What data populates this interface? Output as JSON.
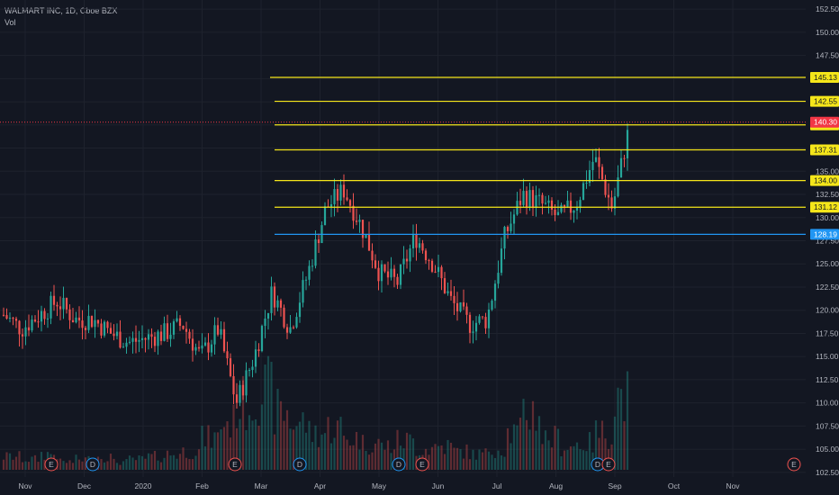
{
  "header": {
    "title": "WALMART INC, 1D, Cboe BZX",
    "volume_label": "Vol"
  },
  "colors": {
    "background": "#131722",
    "grid": "#1e222d",
    "up": "#26a69a",
    "down": "#ef5350",
    "level": "#f5e61a",
    "support": "#2196f3",
    "last_price": "#f23645"
  },
  "chart_data": {
    "type": "candlestick",
    "title": "WALMART INC, 1D, Cboe BZX",
    "ylim": [
      102,
      153
    ],
    "y_ticks": [
      102.5,
      105.0,
      107.5,
      110.0,
      112.5,
      115.0,
      117.5,
      120.0,
      122.5,
      125.0,
      127.5,
      130.0,
      132.5,
      135.0,
      137.5,
      140.0,
      142.5,
      145.0,
      147.5,
      150.0,
      152.5
    ],
    "x_ticks": [
      "Nov",
      "Dec",
      "2020",
      "Feb",
      "Mar",
      "Apr",
      "May",
      "Jun",
      "Jul",
      "Aug",
      "Sep",
      "Oct",
      "Nov"
    ],
    "price_levels": [
      {
        "label": "145.13",
        "value": 145.13,
        "kind": "resistance"
      },
      {
        "label": "142.55",
        "value": 142.55,
        "kind": "resistance"
      },
      {
        "label": "140.01",
        "value": 140.01,
        "kind": "resistance"
      },
      {
        "label": "137.31",
        "value": 137.31,
        "kind": "resistance"
      },
      {
        "label": "134.00",
        "value": 134.0,
        "kind": "resistance"
      },
      {
        "label": "131.12",
        "value": 131.12,
        "kind": "resistance"
      },
      {
        "label": "128.19",
        "value": 128.19,
        "kind": "support"
      }
    ],
    "last_price": {
      "label": "140.30",
      "value": 140.3
    },
    "series": [
      {
        "name": "price",
        "points": [
          [
            "Nov",
            119.5
          ],
          [
            "Nov",
            118.0
          ],
          [
            "Dec",
            119.5
          ],
          [
            "Dec",
            121.0
          ],
          [
            "Dec",
            119.0
          ],
          [
            "2020",
            119.0
          ],
          [
            "2020",
            117.5
          ],
          [
            "2020",
            116.5
          ],
          [
            "Feb",
            117.0
          ],
          [
            "Feb",
            117.5
          ],
          [
            "Feb",
            118.5
          ],
          [
            "Mar",
            115.0
          ],
          [
            "Mar",
            118.0
          ],
          [
            "Mar",
            110.0
          ],
          [
            "Mar",
            115.0
          ],
          [
            "Mar",
            122.0
          ],
          [
            "Mar",
            118.0
          ],
          [
            "Apr",
            124.0
          ],
          [
            "Apr",
            131.0
          ],
          [
            "Apr",
            133.0
          ],
          [
            "Apr",
            129.0
          ],
          [
            "May",
            124.0
          ],
          [
            "May",
            123.0
          ],
          [
            "May",
            128.0
          ],
          [
            "Jun",
            125.0
          ],
          [
            "Jun",
            121.0
          ],
          [
            "Jun",
            118.5
          ],
          [
            "Jul",
            119.0
          ],
          [
            "Jul",
            128.0
          ],
          [
            "Jul",
            132.5
          ],
          [
            "Jul",
            131.5
          ],
          [
            "Aug",
            130.0
          ],
          [
            "Aug",
            131.5
          ],
          [
            "Aug",
            136.5
          ],
          [
            "Aug",
            131.0
          ],
          [
            "Aug",
            140.3
          ]
        ]
      },
      {
        "name": "Vol",
        "values": [
          5,
          4,
          6,
          3,
          4,
          5,
          3,
          4,
          5,
          6,
          7,
          12,
          18,
          25,
          30,
          22,
          18,
          14,
          16,
          12,
          10,
          9,
          11,
          8,
          9,
          7,
          6,
          8,
          14,
          22,
          12,
          9,
          10,
          14,
          28,
          40
        ]
      }
    ],
    "event_markers": [
      {
        "label": "E",
        "date": "Nov"
      },
      {
        "label": "D",
        "date": "Dec"
      },
      {
        "label": "E",
        "date": "Feb"
      },
      {
        "label": "D",
        "date": "Mar"
      },
      {
        "label": "D",
        "date": "May"
      },
      {
        "label": "E",
        "date": "May"
      },
      {
        "label": "D",
        "date": "Aug"
      },
      {
        "label": "E",
        "date": "Aug"
      },
      {
        "label": "E",
        "date": "Nov"
      }
    ]
  }
}
